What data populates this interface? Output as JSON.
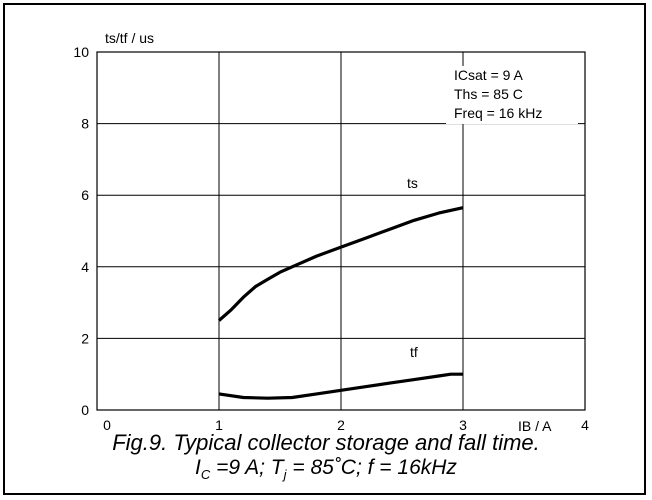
{
  "chart_data": {
    "type": "line",
    "ylabel": "ts/tf / us",
    "xlabel": "IB / A",
    "xlim": [
      0,
      4
    ],
    "ylim": [
      0,
      10
    ],
    "x_ticks": [
      "0",
      "1",
      "2",
      "3",
      "4"
    ],
    "y_ticks": [
      "0",
      "2",
      "4",
      "6",
      "8",
      "10"
    ],
    "grid": true,
    "annotations": [
      "ICsat = 9 A",
      "Ths = 85 C",
      "Freq = 16 kHz"
    ],
    "series": [
      {
        "name": "ts",
        "x": [
          1.0,
          1.1,
          1.2,
          1.3,
          1.4,
          1.5,
          1.6,
          1.8,
          2.0,
          2.2,
          2.4,
          2.6,
          2.8,
          3.0
        ],
        "y": [
          2.5,
          2.8,
          3.15,
          3.45,
          3.65,
          3.85,
          4.0,
          4.3,
          4.55,
          4.8,
          5.05,
          5.3,
          5.5,
          5.65
        ]
      },
      {
        "name": "tf",
        "x": [
          1.0,
          1.2,
          1.4,
          1.6,
          1.8,
          2.0,
          2.2,
          2.4,
          2.6,
          2.8,
          2.9,
          3.0
        ],
        "y": [
          0.45,
          0.35,
          0.33,
          0.35,
          0.45,
          0.55,
          0.65,
          0.75,
          0.85,
          0.95,
          1.0,
          1.0
        ]
      }
    ]
  },
  "caption": {
    "line1": "Fig.9.   Typical collector storage and fall time.",
    "line2": {
      "ic_base": "I",
      "ic_sub": "C",
      "ic_rest": " =9 A; T",
      "tj_sub": "j",
      "tj_rest": " = 85˚C; f = 16kHz"
    }
  }
}
